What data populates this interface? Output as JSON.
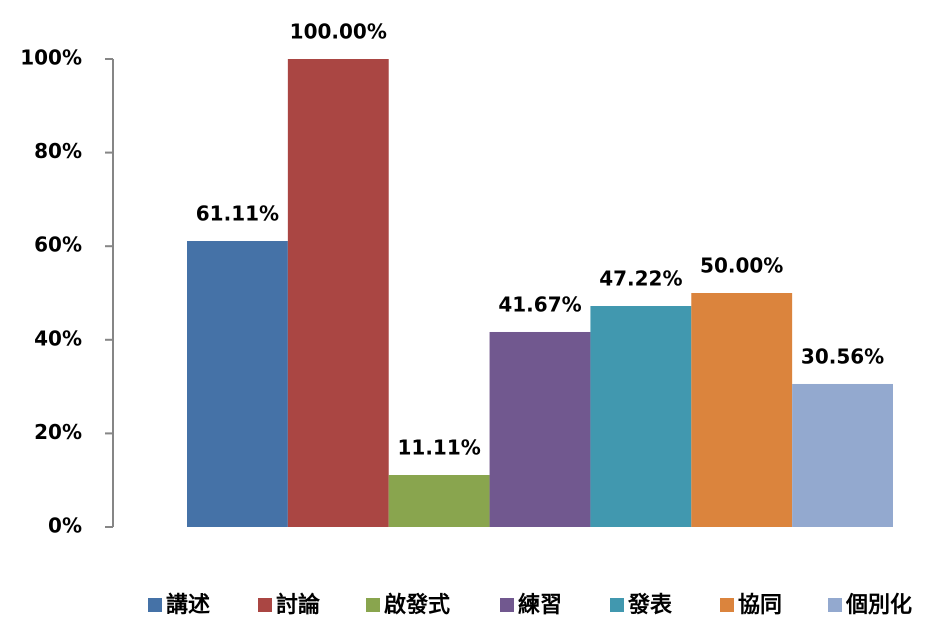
{
  "chart_data": {
    "type": "bar",
    "series": [
      {
        "name": "講述",
        "color": "#4572a7",
        "values": [
          61.11
        ],
        "value_labels": [
          "61.11%"
        ]
      },
      {
        "name": "討論",
        "color": "#aa4643",
        "values": [
          100
        ],
        "value_labels": [
          "100.00%"
        ]
      },
      {
        "name": "啟發式",
        "color": "#89a54e",
        "values": [
          11.11
        ],
        "value_labels": [
          "11.11%"
        ]
      },
      {
        "name": "練習",
        "color": "#71588f",
        "values": [
          41.67
        ],
        "value_labels": [
          "41.67%"
        ]
      },
      {
        "name": "發表",
        "color": "#4198af",
        "values": [
          47.22
        ],
        "value_labels": [
          "47.22%"
        ]
      },
      {
        "name": "協同",
        "color": "#db843d",
        "values": [
          50
        ],
        "value_labels": [
          "50.00%"
        ]
      },
      {
        "name": "個別化",
        "color": "#93a9cf",
        "values": [
          30.56
        ],
        "value_labels": [
          "30.56%"
        ]
      }
    ],
    "ylim": [
      0,
      100
    ],
    "yticks": [
      {
        "value": 0,
        "label": "0%"
      },
      {
        "value": 20,
        "label": "20%"
      },
      {
        "value": 40,
        "label": "40%"
      },
      {
        "value": 60,
        "label": "60%"
      },
      {
        "value": 80,
        "label": "80%"
      },
      {
        "value": 100,
        "label": "100%"
      }
    ],
    "legend": "bottom"
  }
}
